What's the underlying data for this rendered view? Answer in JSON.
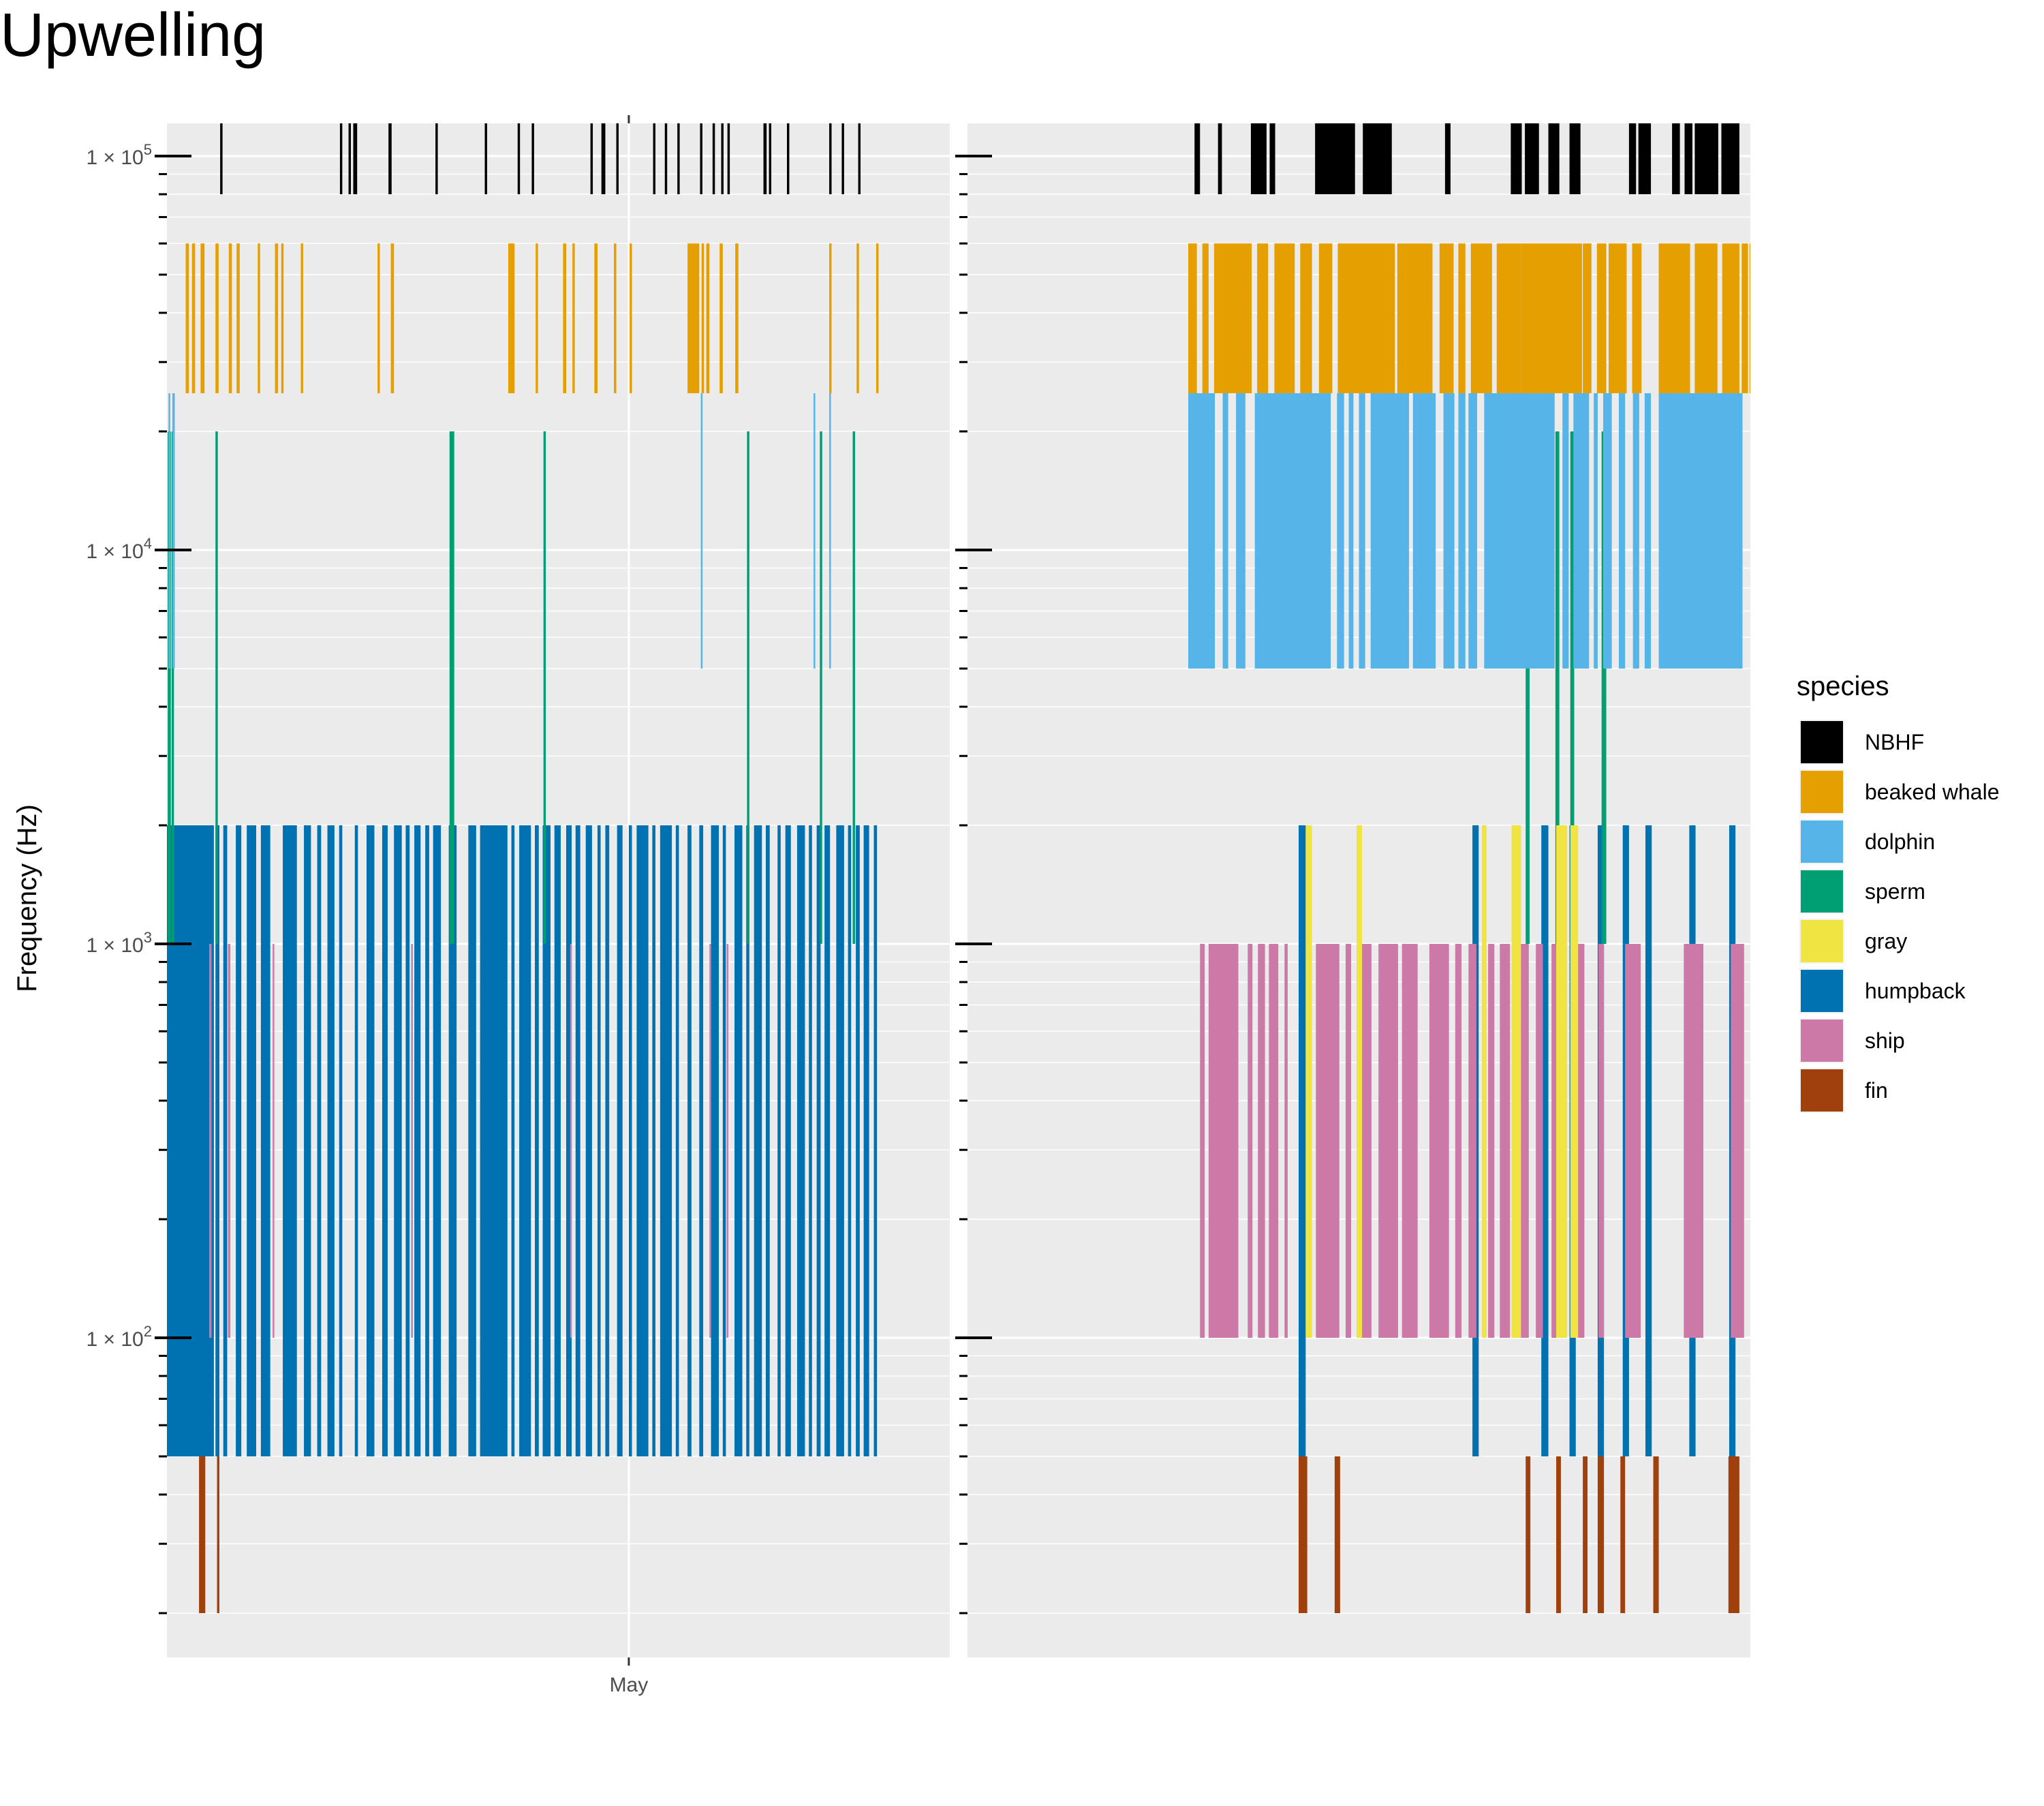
{
  "chart_data": {
    "type": "bar",
    "title": "Upwelling",
    "ylabel": "Frequency (Hz)",
    "xlabel": "",
    "y_scale": "log10",
    "ylim": [
      20,
      150000
    ],
    "y_ticks": [
      {
        "value": 100000,
        "mantissa": "1 × 10",
        "exp": "5"
      },
      {
        "value": 10000,
        "mantissa": "1 × 10",
        "exp": "4"
      },
      {
        "value": 1000,
        "mantissa": "1 × 10",
        "exp": "3"
      },
      {
        "value": 100,
        "mantissa": "1 × 10",
        "exp": "2"
      }
    ],
    "x_tick_label": "May",
    "grid": true,
    "legend": {
      "title": "species",
      "placement": "right",
      "entries": [
        {
          "name": "NBHF",
          "color": "#000000"
        },
        {
          "name": "beaked whale",
          "color": "#E69F00"
        },
        {
          "name": "dolphin",
          "color": "#56B4E9"
        },
        {
          "name": "sperm",
          "color": "#009E73"
        },
        {
          "name": "gray",
          "color": "#F0E442"
        },
        {
          "name": "humpback",
          "color": "#0072B2"
        },
        {
          "name": "ship",
          "color": "#CC79A7"
        },
        {
          "name": "fin",
          "color": "#A0410D"
        }
      ]
    },
    "bands": {
      "NBHF": [
        80000,
        130000
      ],
      "beaked whale": [
        25000,
        60000
      ],
      "dolphin": [
        5000,
        25000
      ],
      "sperm": [
        1000,
        20000
      ],
      "gray": [
        100,
        2000
      ],
      "humpback": [
        50,
        2000
      ],
      "ship": [
        100,
        1000
      ],
      "fin": [
        20,
        50
      ]
    },
    "draw_order": [
      "humpback",
      "ship",
      "fin",
      "sperm",
      "dolphin",
      "beaked whale",
      "NBHF",
      "gray"
    ],
    "panels": [
      {
        "x_range": [
          0,
          100
        ],
        "x_tick": 59,
        "detections": {
          "humpback": [
            [
              0,
              6
            ],
            [
              6.2,
              6.7
            ],
            [
              7.2,
              7.7
            ],
            [
              8.8,
              9.5
            ],
            [
              10.2,
              11.4
            ],
            [
              12,
              13.2
            ],
            [
              14.8,
              16.6
            ],
            [
              17.5,
              18.4
            ],
            [
              19.2,
              19.7
            ],
            [
              20.5,
              21.4
            ],
            [
              22,
              22.4
            ],
            [
              24,
              24.4
            ],
            [
              25.5,
              26.5
            ],
            [
              27.5,
              28.2
            ],
            [
              29,
              30
            ],
            [
              30.5,
              31
            ],
            [
              31.6,
              32.4
            ],
            [
              33,
              33.5
            ],
            [
              34,
              35
            ],
            [
              36,
              37
            ],
            [
              38.5,
              39.5
            ],
            [
              40,
              43.5
            ],
            [
              44,
              44.4
            ],
            [
              45,
              46.5
            ],
            [
              47,
              47.5
            ],
            [
              48,
              49
            ],
            [
              49.5,
              50.3
            ],
            [
              51,
              51.7
            ],
            [
              52.2,
              52.8
            ],
            [
              53.5,
              54.3
            ],
            [
              55,
              55.4
            ],
            [
              56,
              56.5
            ],
            [
              57.5,
              58.2
            ],
            [
              59,
              59.4
            ],
            [
              60,
              61.5
            ],
            [
              62,
              62.4
            ],
            [
              63,
              64.5
            ],
            [
              65,
              65.4
            ],
            [
              66.5,
              67
            ],
            [
              68,
              68.5
            ],
            [
              69.5,
              70.5
            ],
            [
              71,
              71.4
            ],
            [
              72.5,
              73.5
            ],
            [
              74,
              74.4
            ],
            [
              75,
              76
            ],
            [
              76.5,
              77
            ],
            [
              78,
              78.4
            ],
            [
              79,
              79.7
            ],
            [
              80.5,
              81.5
            ],
            [
              82,
              82.4
            ],
            [
              83,
              83.5
            ],
            [
              84,
              84.7
            ],
            [
              85.5,
              86.5
            ],
            [
              87,
              87.4
            ],
            [
              88,
              88.5
            ],
            [
              89,
              89.7
            ],
            [
              90.3,
              90.7
            ]
          ],
          "ship": [
            [
              5.4,
              5.7
            ],
            [
              7.8,
              8.1
            ],
            [
              13.5,
              13.7
            ],
            [
              31.2,
              31.4
            ],
            [
              51.5,
              51.7
            ],
            [
              69.3,
              69.5
            ],
            [
              71.5,
              71.7
            ]
          ],
          "fin": [
            [
              4.1,
              4.9
            ],
            [
              6.4,
              6.7
            ]
          ],
          "sperm": [
            [
              0.1,
              0.5
            ],
            [
              0.6,
              0.9
            ],
            [
              6.2,
              6.5
            ],
            [
              36.1,
              36.7
            ],
            [
              48.1,
              48.4
            ],
            [
              74.1,
              74.4
            ],
            [
              83.4,
              83.7
            ],
            [
              87.6,
              87.9
            ]
          ],
          "dolphin": [
            [
              0.2,
              0.4
            ],
            [
              0.7,
              1.0
            ],
            [
              68.2,
              68.4
            ],
            [
              82.6,
              82.8
            ],
            [
              84.6,
              84.8
            ]
          ],
          "beaked whale": [
            [
              2.4,
              2.8
            ],
            [
              3.2,
              3.6
            ],
            [
              4.3,
              4.8
            ],
            [
              6.2,
              6.6
            ],
            [
              7.9,
              8.3
            ],
            [
              8.9,
              9.3
            ],
            [
              11.6,
              11.9
            ],
            [
              13.8,
              14.2
            ],
            [
              14.6,
              14.9
            ],
            [
              17.1,
              17.4
            ],
            [
              26.9,
              27.2
            ],
            [
              28.6,
              29.0
            ],
            [
              43.6,
              44.4
            ],
            [
              47.1,
              47.4
            ],
            [
              50.6,
              51.0
            ],
            [
              51.8,
              52.1
            ],
            [
              54.6,
              55.0
            ],
            [
              57.1,
              57.4
            ],
            [
              59.1,
              59.4
            ],
            [
              66.5,
              68.0
            ],
            [
              68.3,
              68.6
            ],
            [
              68.9,
              69.3
            ],
            [
              70.6,
              71.0
            ],
            [
              72.6,
              73.0
            ],
            [
              84.6,
              84.9
            ],
            [
              88.1,
              88.4
            ],
            [
              90.6,
              90.9
            ]
          ],
          "NBHF": [
            [
              6.8,
              7.1
            ],
            [
              22.1,
              22.4
            ],
            [
              23.2,
              23.5
            ],
            [
              23.8,
              24.3
            ],
            [
              28.3,
              28.7
            ],
            [
              34.3,
              34.6
            ],
            [
              40.6,
              40.9
            ],
            [
              44.8,
              45.1
            ],
            [
              46.6,
              46.9
            ],
            [
              54.1,
              54.4
            ],
            [
              55.5,
              56.0
            ],
            [
              57.4,
              57.7
            ],
            [
              62.1,
              62.4
            ],
            [
              63.6,
              63.9
            ],
            [
              65.2,
              65.5
            ],
            [
              68.1,
              68.4
            ],
            [
              69.7,
              70.0
            ],
            [
              70.8,
              71.1
            ],
            [
              71.6,
              71.9
            ],
            [
              76.2,
              76.6
            ],
            [
              76.9,
              77.2
            ],
            [
              79.2,
              79.5
            ],
            [
              84.6,
              84.9
            ],
            [
              86.2,
              86.5
            ],
            [
              88.3,
              88.6
            ]
          ]
        }
      },
      {
        "x_range": [
          0,
          100
        ],
        "detections": {
          "humpback": [
            [
              42.3,
              43.2
            ],
            [
              64.5,
              65.3
            ],
            [
              73.3,
              74.2
            ],
            [
              76.9,
              77.7
            ],
            [
              80.5,
              81.3
            ],
            [
              83.7,
              84.5
            ],
            [
              86.6,
              87.4
            ],
            [
              92.2,
              93.0
            ],
            [
              97.3,
              98.1
            ]
          ],
          "ship": [
            [
              29.7,
              30.3
            ],
            [
              30.8,
              34.6
            ],
            [
              35.8,
              36.4
            ],
            [
              37.1,
              38.0
            ],
            [
              38.5,
              39.7
            ],
            [
              40.5,
              40.9
            ],
            [
              44.5,
              47.5
            ],
            [
              48.3,
              49.0
            ],
            [
              50.3,
              51.6
            ],
            [
              52.5,
              55.0
            ],
            [
              55.5,
              57.5
            ],
            [
              59.0,
              61.5
            ],
            [
              62.3,
              63.1
            ],
            [
              64.0,
              65.0
            ],
            [
              66.5,
              67.3
            ],
            [
              68.0,
              69.3
            ],
            [
              70.3,
              71.7
            ],
            [
              72.6,
              73.5
            ],
            [
              74.6,
              75.7
            ],
            [
              77.9,
              78.8
            ],
            [
              80.6,
              81.3
            ],
            [
              84.0,
              86.0
            ],
            [
              91.5,
              94.0
            ],
            [
              97.5,
              99.2
            ],
            [
              100.0,
              101.5
            ]
          ],
          "gray": [
            [
              43.2,
              44.0
            ],
            [
              49.7,
              50.4
            ],
            [
              65.7,
              66.3
            ],
            [
              69.5,
              70.7
            ],
            [
              75.2,
              76.6
            ],
            [
              77.0,
              78.0
            ]
          ],
          "fin": [
            [
              42.3,
              43.4
            ],
            [
              46.9,
              47.6
            ],
            [
              71.3,
              71.9
            ],
            [
              75.2,
              75.8
            ],
            [
              78.6,
              79.2
            ],
            [
              80.5,
              81.3
            ],
            [
              83.4,
              84.0
            ],
            [
              87.6,
              88.3
            ],
            [
              97.2,
              98.6
            ]
          ],
          "sperm": [
            [
              71.3,
              71.8
            ],
            [
              75.1,
              75.6
            ],
            [
              77.0,
              77.5
            ],
            [
              81.0,
              81.6
            ]
          ],
          "dolphin": [
            [
              28.2,
              31.6
            ],
            [
              32.6,
              33.3
            ],
            [
              34.3,
              35.5
            ],
            [
              36.7,
              46.4
            ],
            [
              47.2,
              48.1
            ],
            [
              48.7,
              49.3
            ],
            [
              50.0,
              50.8
            ],
            [
              51.5,
              56.4
            ],
            [
              56.9,
              59.8
            ],
            [
              60.8,
              62.2
            ],
            [
              62.7,
              63.6
            ],
            [
              64.0,
              65.1
            ],
            [
              66.0,
              75.0
            ],
            [
              76.0,
              76.8
            ],
            [
              77.4,
              79.4
            ],
            [
              80.0,
              80.5
            ],
            [
              81.2,
              82.3
            ],
            [
              83.2,
              84.0
            ],
            [
              85.0,
              85.8
            ],
            [
              86.5,
              87.3
            ],
            [
              88.3,
              99.0
            ],
            [
              100.0,
              100.8
            ]
          ],
          "beaked whale": [
            [
              28.2,
              29.3
            ],
            [
              30.0,
              30.8
            ],
            [
              31.5,
              36.3
            ],
            [
              37.0,
              38.4
            ],
            [
              39.2,
              41.8
            ],
            [
              42.5,
              44.0
            ],
            [
              44.9,
              46.6
            ],
            [
              47.3,
              54.6
            ],
            [
              54.9,
              59.4
            ],
            [
              60.3,
              62.1
            ],
            [
              62.7,
              63.6
            ],
            [
              64.3,
              67.0
            ],
            [
              67.6,
              70.7
            ],
            [
              70.7,
              78.5
            ],
            [
              78.6,
              79.7
            ],
            [
              80.4,
              81.6
            ],
            [
              81.9,
              84.2
            ],
            [
              84.9,
              86.1
            ],
            [
              88.3,
              92.3
            ],
            [
              92.9,
              95.8
            ],
            [
              96.4,
              98.6
            ],
            [
              98.9,
              99.7
            ],
            [
              99.9,
              100.0
            ]
          ],
          "NBHF": [
            [
              29.0,
              29.7
            ],
            [
              32.0,
              32.5
            ],
            [
              36.2,
              38.2
            ],
            [
              38.6,
              39.3
            ],
            [
              44.4,
              49.5
            ],
            [
              50.5,
              54.2
            ],
            [
              61.0,
              61.7
            ],
            [
              69.4,
              70.8
            ],
            [
              71.2,
              73.0
            ],
            [
              74.2,
              75.6
            ],
            [
              76.9,
              78.3
            ],
            [
              84.5,
              85.4
            ],
            [
              85.7,
              87.3
            ],
            [
              90.0,
              91.0
            ],
            [
              91.6,
              92.6
            ],
            [
              92.9,
              95.9
            ],
            [
              96.3,
              98.6
            ]
          ]
        }
      }
    ]
  }
}
